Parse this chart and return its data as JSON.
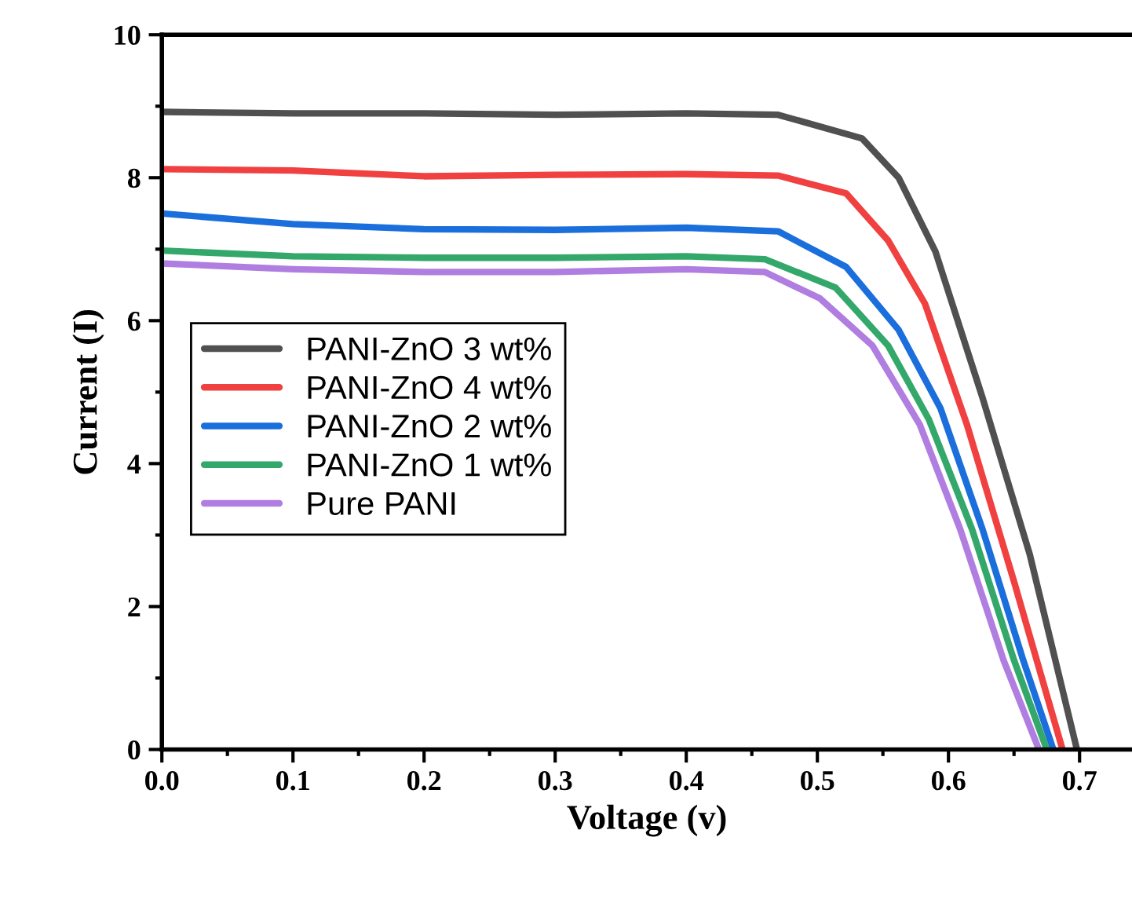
{
  "chart_data": {
    "type": "line",
    "xlabel": "Voltage (v)",
    "ylabel": "Current (I)",
    "xlim": [
      0,
      0.74
    ],
    "ylim": [
      0,
      10
    ],
    "xticks": [
      {
        "value": 0,
        "label": "0.0"
      },
      0.1,
      0.2,
      0.3,
      0.4,
      0.5,
      0.6,
      0.7
    ],
    "yticks": [
      0,
      2,
      4,
      6,
      8,
      10
    ],
    "grid": false,
    "legend": "left",
    "marker": "none",
    "line_style": "solid",
    "series": [
      {
        "name": "PANI-ZnO 3 wt%",
        "color": "#505050",
        "x": [
          0,
          0.1,
          0.2,
          0.3,
          0.4,
          0.47,
          0.534,
          0.562,
          0.59,
          0.626,
          0.662,
          0.698
        ],
        "values": [
          8.92,
          8.9,
          8.9,
          8.88,
          8.9,
          8.88,
          8.55,
          8.0,
          6.97,
          4.92,
          2.73,
          0
        ]
      },
      {
        "name": "PANI-ZnO 4 wt%",
        "color": "#f04040",
        "x": [
          0,
          0.1,
          0.2,
          0.3,
          0.4,
          0.47,
          0.522,
          0.554,
          0.582,
          0.614,
          0.65,
          0.687
        ],
        "values": [
          8.12,
          8.1,
          8.02,
          8.04,
          8.05,
          8.03,
          7.78,
          7.12,
          6.24,
          4.55,
          2.35,
          0
        ]
      },
      {
        "name": "PANI-ZnO 2 wt%",
        "color": "#1a6fdc",
        "x": [
          0,
          0.1,
          0.2,
          0.3,
          0.4,
          0.47,
          0.522,
          0.562,
          0.594,
          0.626,
          0.657,
          0.68
        ],
        "values": [
          7.5,
          7.35,
          7.28,
          7.27,
          7.3,
          7.25,
          6.75,
          5.87,
          4.77,
          3.08,
          1.25,
          0
        ]
      },
      {
        "name": "PANI-ZnO 1 wt%",
        "color": "#33a86a",
        "x": [
          0,
          0.1,
          0.2,
          0.3,
          0.4,
          0.46,
          0.514,
          0.554,
          0.585,
          0.618,
          0.65,
          0.675
        ],
        "values": [
          6.98,
          6.9,
          6.88,
          6.88,
          6.9,
          6.86,
          6.46,
          5.65,
          4.62,
          3.08,
          1.25,
          0
        ]
      },
      {
        "name": "Pure PANI",
        "color": "#b07ee0",
        "x": [
          0,
          0.1,
          0.2,
          0.3,
          0.4,
          0.46,
          0.502,
          0.542,
          0.578,
          0.609,
          0.642,
          0.669
        ],
        "values": [
          6.8,
          6.72,
          6.68,
          6.68,
          6.72,
          6.68,
          6.31,
          5.65,
          4.55,
          3.08,
          1.25,
          0
        ]
      }
    ]
  }
}
